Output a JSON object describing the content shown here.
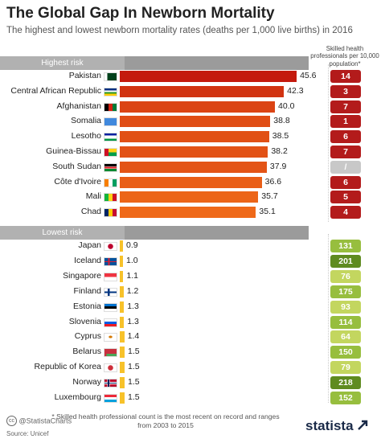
{
  "header": {
    "title": "The Global Gap In Newborn Mortality",
    "subtitle": "The highest and lowest newborn mortality rates (deaths per 1,000 live births) in 2016",
    "skilled_label": "Skilled health professionals per 10,000 population*"
  },
  "sections": {
    "highest": "Highest risk",
    "lowest": "Lowest risk"
  },
  "chart_data": {
    "type": "bar",
    "orientation": "horizontal",
    "title": "The Global Gap In Newborn Mortality",
    "subtitle": "The highest and lowest newborn mortality rates (deaths per 1,000 live births) in 2016",
    "groups": [
      {
        "name": "Highest risk",
        "categories": [
          "Pakistan",
          "Central African Republic",
          "Afghanistan",
          "Somalia",
          "Lesotho",
          "Guinea-Bissau",
          "South Sudan",
          "Côte d'Ivoire",
          "Mali",
          "Chad"
        ],
        "values": [
          45.6,
          42.3,
          40.0,
          38.8,
          38.5,
          38.2,
          37.9,
          36.6,
          35.7,
          35.1
        ],
        "value_labels": [
          "45.6",
          "42.3",
          "40.0",
          "38.8",
          "38.5",
          "38.2",
          "37.9",
          "36.6",
          "35.7",
          "35.1"
        ],
        "skilled_health_professionals": [
          "14",
          "3",
          "7",
          "1",
          "6",
          "7",
          "/",
          "6",
          "5",
          "4"
        ]
      },
      {
        "name": "Lowest risk",
        "categories": [
          "Japan",
          "Iceland",
          "Singapore",
          "Finland",
          "Estonia",
          "Slovenia",
          "Cyprus",
          "Belarus",
          "Republic of Korea",
          "Norway",
          "Luxembourg"
        ],
        "values": [
          0.9,
          1.0,
          1.1,
          1.2,
          1.3,
          1.3,
          1.4,
          1.5,
          1.5,
          1.5,
          1.5
        ],
        "value_labels": [
          "0.9",
          "1.0",
          "1.1",
          "1.2",
          "1.3",
          "1.3",
          "1.4",
          "1.5",
          "1.5",
          "1.5",
          "1.5"
        ],
        "skilled_health_professionals": [
          "131",
          "201",
          "76",
          "175",
          "93",
          "114",
          "64",
          "150",
          "79",
          "218",
          "152"
        ]
      }
    ],
    "xlim": [
      0,
      46
    ],
    "grid": false,
    "colors": {
      "high_bar_dark": "#c41a0e",
      "high_bar_light": "#ef6a19",
      "low_bar": "#f7c22a",
      "high_badge": "#b31b1b",
      "missing_badge": "#c8c8c8",
      "low_badge_light": "#c3d65f",
      "low_badge_mid": "#97be3e",
      "low_badge_dark": "#5f8b20"
    }
  },
  "footer": {
    "footnote": "* Skilled health professional count is the most recent on record and ranges from 2003 to 2015",
    "credit": "@StatistaCharts",
    "source": "Source: Unicef",
    "logo": "statista"
  }
}
